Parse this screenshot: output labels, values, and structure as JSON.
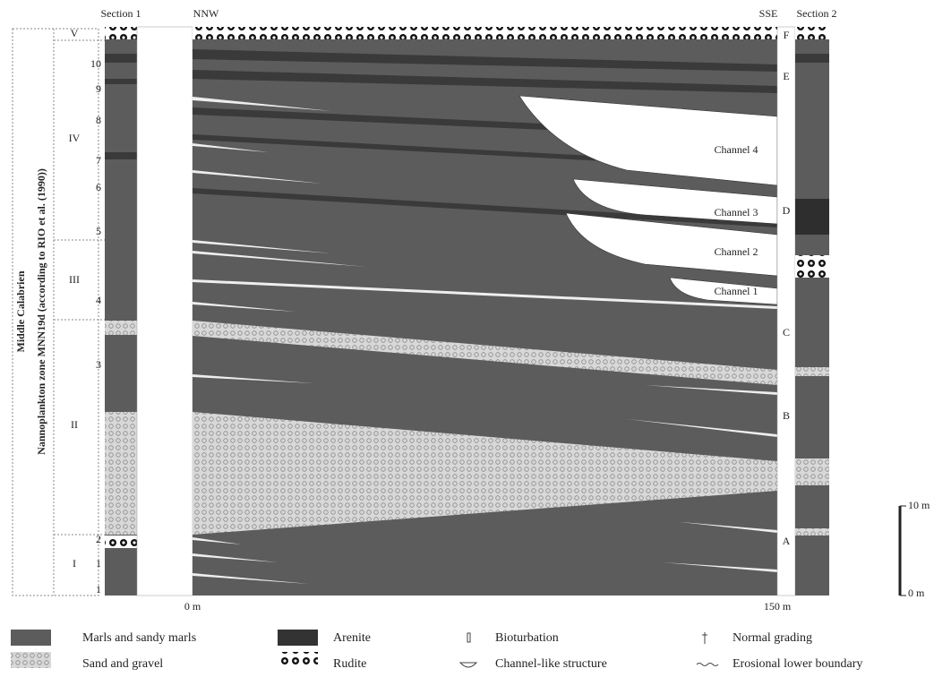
{
  "sections": {
    "left_title": "Section 1",
    "left_direction": "NNW",
    "right_direction": "SSE",
    "right_title": "Section 2"
  },
  "stratigraphy": {
    "stage": "Middle Calabrien",
    "zone": "Nannoplankton zone MNN19d (according to  RIO et al. (1990))"
  },
  "units": [
    "V",
    "IV",
    "III",
    "II",
    "I"
  ],
  "beds": [
    "10",
    "9",
    "8",
    "7",
    "6",
    "5",
    "4",
    "3",
    "2",
    "1",
    "1"
  ],
  "correlation_levels": [
    "F",
    "E",
    "D",
    "C",
    "B",
    "A"
  ],
  "channels": [
    "Channel 4",
    "Channel 3",
    "Channel 2",
    "Channel 1"
  ],
  "distance_axis": [
    "0 m",
    "150 m"
  ],
  "scale_bar": [
    "10 m",
    "0 m"
  ],
  "legend": [
    "Marls and sandy marls",
    "Sand and gravel",
    "Arenite",
    "Rudite",
    "Bioturbation",
    "Channel-like structure",
    "Normal grading",
    "Erosional lower boundary"
  ]
}
